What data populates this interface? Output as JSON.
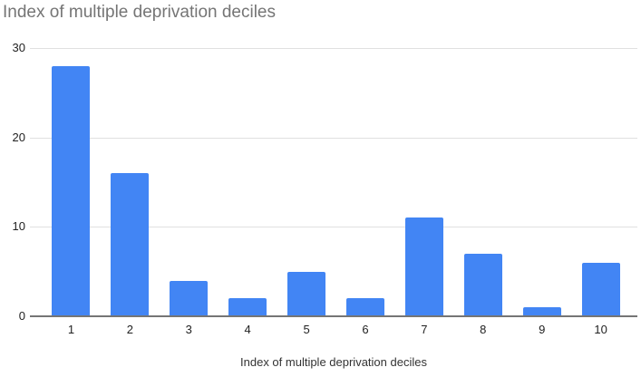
{
  "chart_data": {
    "type": "bar",
    "title": "Index of multiple deprivation deciles",
    "xlabel": "Index of multiple deprivation deciles",
    "ylabel": "",
    "categories": [
      "1",
      "2",
      "3",
      "4",
      "5",
      "6",
      "7",
      "8",
      "9",
      "10"
    ],
    "values": [
      28,
      16,
      4,
      2,
      5,
      2,
      11,
      7,
      1,
      6
    ],
    "ylim": [
      0,
      30
    ],
    "yticks": [
      0,
      10,
      20,
      30
    ],
    "grid": true,
    "legend_position": "none",
    "colors": {
      "bar": "#4285F4",
      "gridline": "#e0e0e0",
      "axis_line": "#757575",
      "title_text": "#757575",
      "tick_text": "#222222",
      "axis_title_text": "#333333",
      "background": "#ffffff"
    }
  }
}
